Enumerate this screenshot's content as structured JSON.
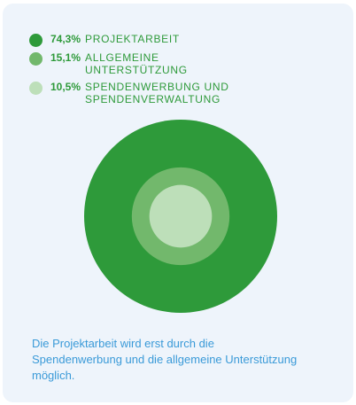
{
  "chart_data": {
    "type": "pie",
    "style": "concentric-circles",
    "series": [
      {
        "value": 74.3,
        "value_label": "74,3%",
        "name": "PROJEKTARBEIT",
        "color": "#2e9a3a"
      },
      {
        "value": 15.1,
        "value_label": "15,1%",
        "name": "ALLGEMEINE UNTERSTÜTZUNG",
        "color": "#72b86c"
      },
      {
        "value": 10.5,
        "value_label": "10,5%",
        "name": "SPENDENWERBUNG UND SPENDENVERWALTUNG",
        "color": "#bddfb9"
      }
    ],
    "legend_position": "top-left"
  },
  "caption": "Die Projektarbeit wird erst durch die Spendenwerbung und die allgemeine Unterstützung möglich."
}
